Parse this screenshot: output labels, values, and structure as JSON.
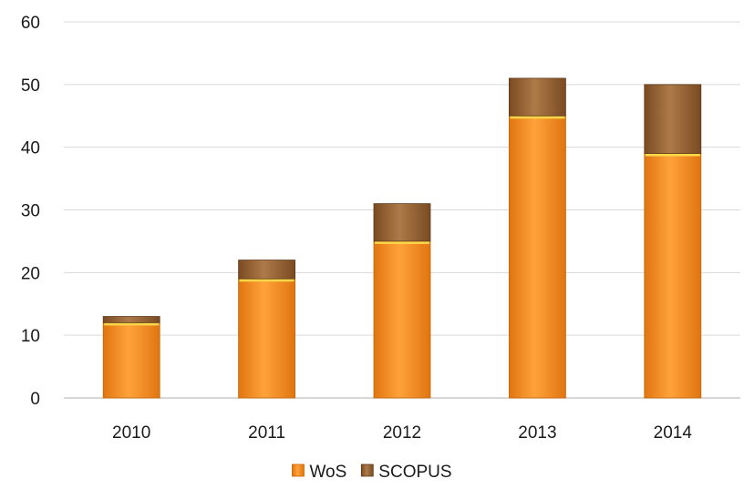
{
  "chart_data": {
    "type": "bar",
    "stacked": true,
    "categories": [
      "2010",
      "2011",
      "2012",
      "2013",
      "2014"
    ],
    "series": [
      {
        "name": "WoS",
        "values": [
          12,
          19,
          25,
          45,
          39
        ],
        "color": "#f08c1e"
      },
      {
        "name": "SCOPUS",
        "values": [
          1,
          3,
          6,
          6,
          11
        ],
        "color": "#946034"
      }
    ],
    "ylim": [
      0,
      60
    ],
    "yticks": [
      0,
      10,
      20,
      30,
      40,
      50,
      60
    ],
    "grid": true,
    "legend": "bottom",
    "title": "",
    "xlabel": "",
    "ylabel": ""
  }
}
